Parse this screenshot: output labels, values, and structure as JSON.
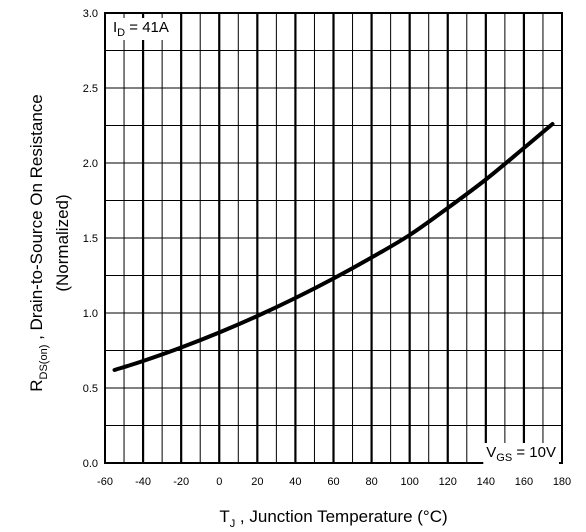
{
  "chart_data": {
    "type": "line",
    "title": "",
    "xlabel": {
      "main": "T",
      "sub": "J",
      "rest": " , Junction Temperature (°C)"
    },
    "ylabel": {
      "line1_main": "R",
      "line1_sub": "DS(on)",
      "line1_rest": " ,  Drain-to-Source On Resistance",
      "line2": "(Normalized)"
    },
    "xlim": [
      -60,
      180
    ],
    "ylim": [
      0.0,
      3.0
    ],
    "x_ticks": [
      -60,
      -40,
      -20,
      0,
      20,
      40,
      60,
      80,
      100,
      120,
      140,
      160,
      180
    ],
    "y_ticks": [
      0.0,
      0.5,
      1.0,
      1.5,
      2.0,
      2.5,
      3.0
    ],
    "x_tick_labels": [
      "-60",
      "-40",
      "-20",
      "0",
      "20",
      "40",
      "60",
      "80",
      "100",
      "120",
      "140",
      "160",
      "180"
    ],
    "y_tick_labels": [
      "0.0",
      "0.5",
      "1.0",
      "1.5",
      "2.0",
      "2.5",
      "3.0"
    ],
    "grid": true,
    "annotations": {
      "id": {
        "main": "I",
        "sub": "D",
        "rest": " = 41A"
      },
      "vgs": {
        "main": "V",
        "sub": "GS",
        "rest": " = 10V"
      }
    },
    "series": [
      {
        "x": [
          -55,
          -40,
          -20,
          0,
          20,
          40,
          60,
          80,
          100,
          120,
          140,
          160,
          175
        ],
        "values": [
          0.62,
          0.68,
          0.77,
          0.87,
          0.98,
          1.1,
          1.23,
          1.37,
          1.52,
          1.7,
          1.89,
          2.1,
          2.26
        ]
      }
    ]
  },
  "colors": {
    "line": "#000000",
    "grid": "#000000",
    "background": "#ffffff"
  }
}
